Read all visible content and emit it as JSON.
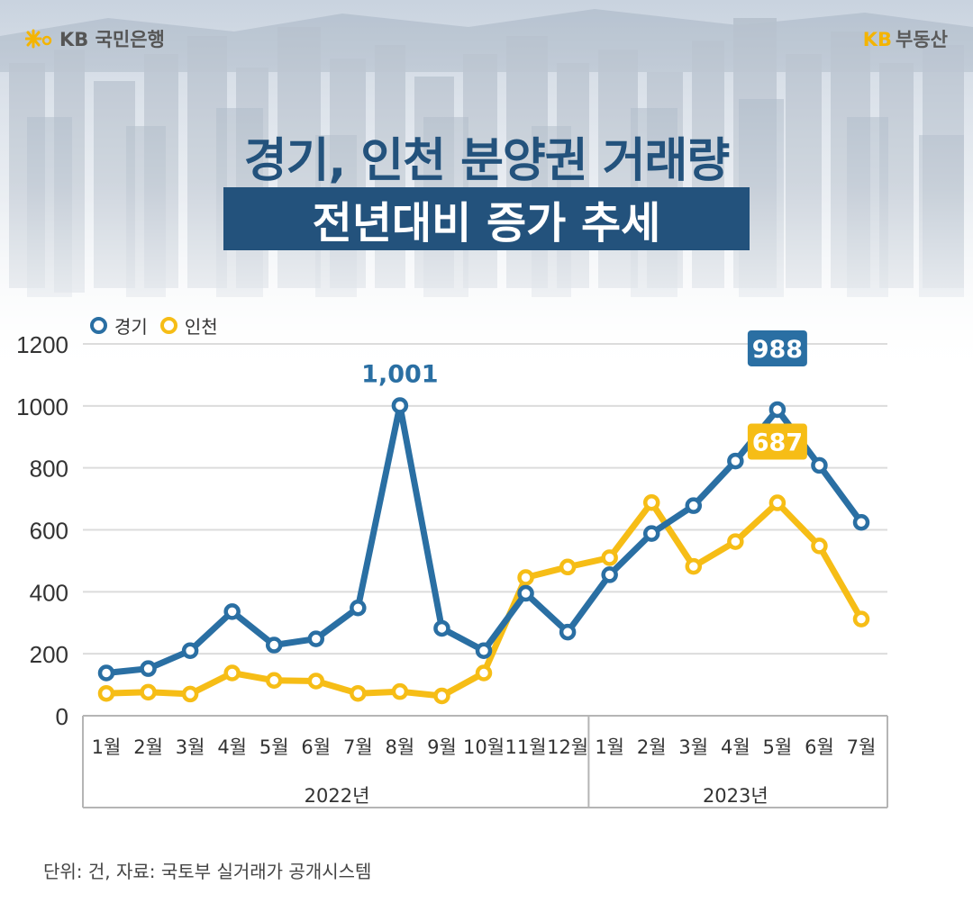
{
  "brand": {
    "left_logo_text": "KB 국민은행",
    "right_logo_kb": "KB",
    "right_logo_text": "부동산"
  },
  "title": {
    "line1": "경기, 인천 분양권 거래량",
    "line2": "전년대비 증가 추세"
  },
  "footer": "단위: 건, 자료: 국토부 실거래가 공개시스템",
  "colors": {
    "gyeonggi": "#2a6fa3",
    "incheon": "#f6bd16",
    "title": "#23527c"
  },
  "chart_data": {
    "type": "line",
    "categories": [
      "1월",
      "2월",
      "3월",
      "4월",
      "5월",
      "6월",
      "7월",
      "8월",
      "9월",
      "10월",
      "11월",
      "12월",
      "1월",
      "2월",
      "3월",
      "4월",
      "5월",
      "6월",
      "7월"
    ],
    "year_groups": [
      {
        "label": "2022년",
        "count": 12
      },
      {
        "label": "2023년",
        "count": 7
      }
    ],
    "series": [
      {
        "name": "경기",
        "color": "#2a6fa3",
        "values": [
          138,
          152,
          210,
          336,
          228,
          248,
          348,
          1001,
          282,
          210,
          395,
          270,
          455,
          588,
          678,
          822,
          988,
          808,
          624
        ]
      },
      {
        "name": "인천",
        "color": "#f6bd16",
        "values": [
          72,
          76,
          70,
          138,
          114,
          112,
          72,
          78,
          64,
          138,
          446,
          480,
          510,
          688,
          482,
          562,
          687,
          548,
          312
        ]
      }
    ],
    "annotations": [
      {
        "series": 0,
        "index": 7,
        "text": "1,001",
        "style": "plain"
      },
      {
        "series": 0,
        "index": 16,
        "text": "988",
        "style": "box"
      },
      {
        "series": 1,
        "index": 16,
        "text": "687",
        "style": "box"
      }
    ],
    "yticks": [
      0,
      200,
      400,
      600,
      800,
      1000,
      1200
    ],
    "ylim": [
      0,
      1200
    ],
    "grid": true,
    "legend": "top-left"
  }
}
